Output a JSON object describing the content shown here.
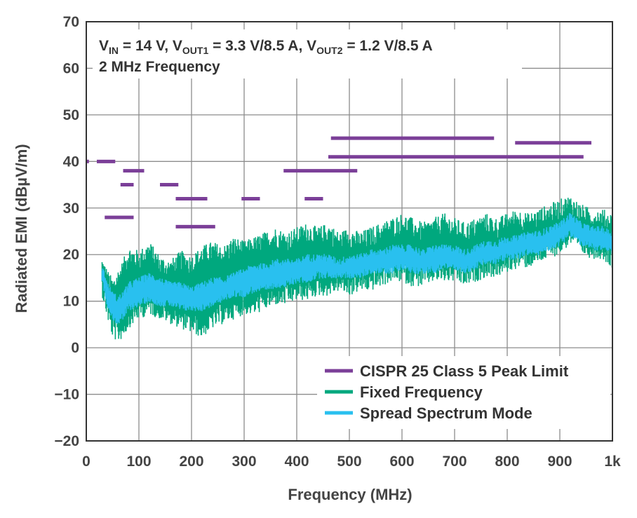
{
  "chart_data": {
    "type": "line",
    "xlabel": "Frequency (MHz)",
    "ylabel": "Radiated EMI (dBµV/m)",
    "xlim": [
      0,
      1000
    ],
    "ylim": [
      -20,
      70
    ],
    "x_ticks": [
      0,
      100,
      200,
      300,
      400,
      500,
      600,
      700,
      800,
      900,
      1000
    ],
    "x_tick_labels": [
      "0",
      "100",
      "200",
      "300",
      "400",
      "500",
      "600",
      "700",
      "800",
      "900",
      "1k"
    ],
    "y_ticks": [
      -20,
      -10,
      0,
      10,
      20,
      30,
      40,
      50,
      60,
      70
    ],
    "y_tick_labels": [
      "−20",
      "−10",
      "0",
      "10",
      "20",
      "30",
      "40",
      "50",
      "60",
      "70"
    ],
    "grid": true,
    "annotation": {
      "line1": {
        "vin": "V",
        "vin_sub": "IN",
        "vin_val": " = 14 V, ",
        "vout1": "V",
        "vout1_sub": "OUT1",
        "vout1_val": " = 3.3 V/8.5 A, ",
        "vout2": "V",
        "vout2_sub": "OUT2",
        "vout2_val": " = 1.2 V/8.5 A"
      },
      "line2": "2 MHz Frequency"
    },
    "legend_position": "bottom-right",
    "series": [
      {
        "name": "CISPR 25 Class 5 Peak Limit",
        "color": "#7b3f98",
        "kind": "segments",
        "segments": [
          {
            "x": [
              0,
              5
            ],
            "y": 40
          },
          {
            "x": [
              20,
              55
            ],
            "y": 40
          },
          {
            "x": [
              35,
              90
            ],
            "y": 28
          },
          {
            "x": [
              70,
              110
            ],
            "y": 38
          },
          {
            "x": [
              65,
              90
            ],
            "y": 35
          },
          {
            "x": [
              140,
              175
            ],
            "y": 35
          },
          {
            "x": [
              170,
              245
            ],
            "y": 26
          },
          {
            "x": [
              170,
              230
            ],
            "y": 32
          },
          {
            "x": [
              295,
              330
            ],
            "y": 32
          },
          {
            "x": [
              375,
              515
            ],
            "y": 38
          },
          {
            "x": [
              415,
              450
            ],
            "y": 32
          },
          {
            "x": [
              460,
              945
            ],
            "y": 41
          },
          {
            "x": [
              465,
              775
            ],
            "y": 45
          },
          {
            "x": [
              815,
              960
            ],
            "y": 44
          }
        ]
      },
      {
        "name": "Fixed Frequency",
        "color": "#00a87e",
        "kind": "band",
        "x": [
          30,
          40,
          50,
          60,
          70,
          80,
          100,
          120,
          140,
          160,
          180,
          200,
          220,
          240,
          260,
          280,
          300,
          320,
          340,
          360,
          380,
          400,
          420,
          440,
          460,
          480,
          500,
          520,
          540,
          560,
          580,
          600,
          620,
          640,
          660,
          680,
          700,
          720,
          740,
          760,
          780,
          800,
          820,
          840,
          860,
          880,
          900,
          920,
          940,
          960,
          980,
          1000
        ],
        "upper": [
          17,
          14,
          12,
          14,
          16,
          19,
          18,
          20,
          17,
          16,
          18,
          17,
          19,
          20,
          19,
          21,
          20,
          21,
          22,
          23,
          22,
          23,
          24,
          23,
          24,
          22,
          23,
          22,
          23,
          24,
          25,
          26,
          25,
          24,
          25,
          26,
          25,
          24,
          25,
          26,
          25,
          26,
          27,
          26,
          27,
          28,
          29,
          30,
          28,
          27,
          27,
          26
        ],
        "lower": [
          14,
          9,
          5,
          4,
          5,
          7,
          9,
          10,
          9,
          8,
          7,
          6,
          5,
          7,
          8,
          9,
          10,
          10,
          11,
          12,
          12,
          13,
          13,
          14,
          14,
          15,
          14,
          15,
          15,
          16,
          17,
          17,
          16,
          16,
          17,
          17,
          17,
          16,
          17,
          18,
          18,
          19,
          20,
          20,
          21,
          22,
          23,
          25,
          23,
          22,
          22,
          20
        ]
      },
      {
        "name": "Spread Spectrum Mode",
        "color": "#29c0ef",
        "kind": "band",
        "x": [
          30,
          40,
          50,
          60,
          70,
          80,
          100,
          120,
          140,
          160,
          180,
          200,
          220,
          240,
          260,
          280,
          300,
          320,
          340,
          360,
          380,
          400,
          420,
          440,
          460,
          480,
          500,
          520,
          540,
          560,
          580,
          600,
          620,
          640,
          660,
          680,
          700,
          720,
          740,
          760,
          780,
          800,
          820,
          840,
          860,
          880,
          900,
          920,
          940,
          960,
          980,
          1000
        ],
        "upper": [
          17,
          13,
          11,
          10,
          11,
          13,
          14,
          15,
          14,
          13,
          13,
          12,
          13,
          14,
          14,
          15,
          16,
          17,
          17,
          18,
          18,
          18,
          19,
          19,
          19,
          18,
          19,
          19,
          20,
          20,
          21,
          21,
          21,
          20,
          21,
          21,
          21,
          20,
          21,
          22,
          22,
          23,
          23,
          24,
          24,
          25,
          26,
          28,
          26,
          25,
          25,
          24
        ],
        "lower": [
          15,
          10,
          7,
          6,
          7,
          9,
          10,
          11,
          10,
          10,
          9,
          9,
          9,
          10,
          11,
          12,
          12,
          13,
          13,
          14,
          14,
          15,
          15,
          16,
          16,
          16,
          16,
          16,
          17,
          17,
          17,
          18,
          17,
          17,
          17,
          18,
          18,
          17,
          18,
          19,
          19,
          20,
          20,
          21,
          21,
          22,
          23,
          25,
          23,
          22,
          22,
          21
        ]
      }
    ]
  }
}
